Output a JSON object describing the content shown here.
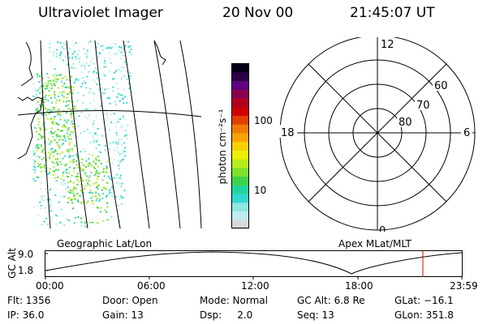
{
  "header": {
    "title": "Ultraviolet Imager",
    "date": "20 Nov 00",
    "time": "21:45:07 UT"
  },
  "colorbar": {
    "unit_label": "photon cm⁻²s⁻¹",
    "tick_100": "100",
    "tick_10": "10",
    "colors": [
      "#d9d9d9",
      "#c0ecec",
      "#8ee8e0",
      "#33d7d0",
      "#22d5a0",
      "#3fd24c",
      "#7ee12a",
      "#b8ec1c",
      "#eef000",
      "#f7d000",
      "#f7a500",
      "#f07a00",
      "#e04000",
      "#d00000",
      "#b0001f",
      "#8a0050",
      "#5e0080",
      "#2c0045",
      "#000018"
    ]
  },
  "polar_plot": {
    "mlt_labels": {
      "top": "12",
      "left": "18",
      "right": "6",
      "bottom": "0"
    },
    "lat_labels": [
      "60",
      "70",
      "80"
    ]
  },
  "geo_map": {
    "caption": "Geographic Lat/Lon"
  },
  "orbit_plot": {
    "caption": "Apex MLat/MLT",
    "yaxis_label": "GC Alt",
    "ytick_top": "9.0",
    "ytick_bottom": "1.8",
    "xticks": [
      "00:00",
      "06:00",
      "12:00",
      "18:00",
      "23:59"
    ],
    "current_marker_color": "#e00000"
  },
  "status": {
    "flt": "Flt: 1356",
    "ip": "IP: 36.0",
    "door": "Door: Open",
    "gain": "Gain: 13",
    "mode": "Mode: Normal",
    "dsp": "Dsp:     2.0",
    "gcalt": "GC Alt: 6.8 Re",
    "seq": "Seq: 13",
    "glat": "GLat: −16.1",
    "glon": "GLon: 351.8"
  }
}
